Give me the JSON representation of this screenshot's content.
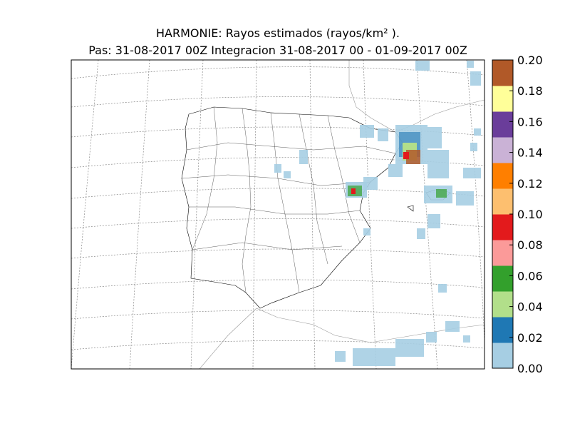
{
  "map": {
    "title": "HARMONIE: Rayos estimados  (rayos/km² ).",
    "subtitle": "Pas: 31-08-2017 00Z Integracion 31-08-2017 00 - 01-09-2017 00Z",
    "colorbar": {
      "lim": [
        0,
        0.2
      ],
      "ticks": [
        {
          "value": 0,
          "label": "0.00"
        },
        {
          "value": 0.02,
          "label": "0.02"
        },
        {
          "value": 0.04,
          "label": "0.04"
        },
        {
          "value": 0.06,
          "label": "0.06"
        },
        {
          "value": 0.08,
          "label": "0.08"
        },
        {
          "value": 0.1,
          "label": "0.10"
        },
        {
          "value": 0.12,
          "label": "0.12"
        },
        {
          "value": 0.14,
          "label": "0.14"
        },
        {
          "value": 0.16,
          "label": "0.16"
        },
        {
          "value": 0.18,
          "label": "0.18"
        },
        {
          "value": 0.2,
          "label": "0.20"
        }
      ],
      "colors": [
        "#a6cee3",
        "#1f78b4",
        "#b2df8a",
        "#33a02c",
        "#fb9a99",
        "#e31a1c",
        "#fdbf6f",
        "#ff7f00",
        "#cab2d6",
        "#6a3d9a",
        "#ffff99",
        "#b15928"
      ]
    }
  }
}
